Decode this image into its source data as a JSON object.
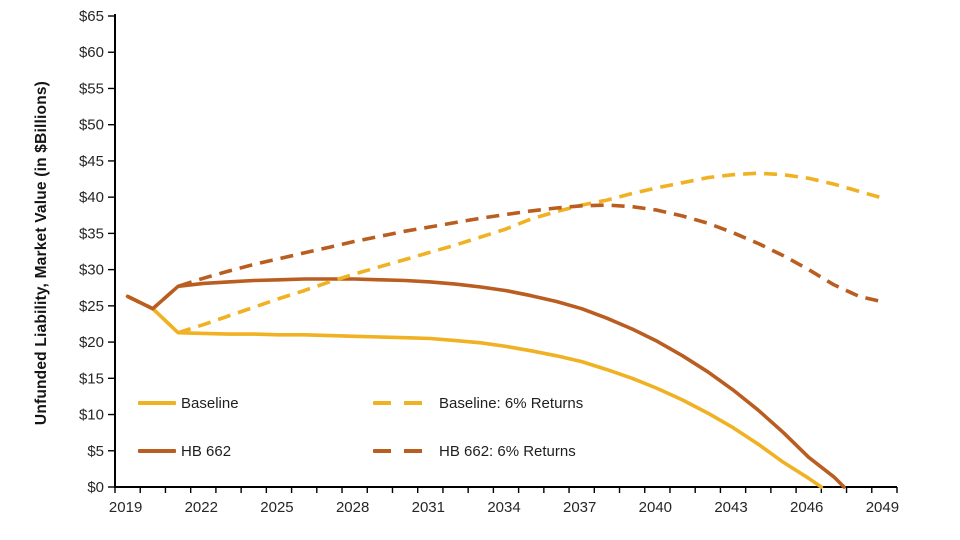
{
  "accent_colors": {
    "gold": "#F0B122",
    "brown": "#BA5D20",
    "axis": "#000000",
    "tick_text": "#262626"
  },
  "chart_data": {
    "type": "line",
    "title": "",
    "xlabel": "",
    "ylabel": "Unfunded Liability, Market Value (in $Billions)",
    "ylim": [
      0,
      65
    ],
    "xlim": [
      2019,
      2049
    ],
    "grid": false,
    "legend_position": "inside-bottom-left",
    "yticks": {
      "values": [
        0,
        5,
        10,
        15,
        20,
        25,
        30,
        35,
        40,
        45,
        50,
        55,
        60,
        65
      ],
      "labels": [
        "$0",
        "$5",
        "$10",
        "$15",
        "$20",
        "$25",
        "$30",
        "$35",
        "$40",
        "$45",
        "$50",
        "$55",
        "$60",
        "$65"
      ]
    },
    "xticks": {
      "values": [
        2019,
        2022,
        2025,
        2028,
        2031,
        2034,
        2037,
        2040,
        2043,
        2046,
        2049
      ],
      "labels": [
        "2019",
        "2022",
        "2025",
        "2028",
        "2031",
        "2034",
        "2037",
        "2040",
        "2043",
        "2046",
        "2049"
      ],
      "minor_tick_every_year": true
    },
    "series": [
      {
        "name": "Baseline",
        "color": "#F0B122",
        "style": "solid",
        "points": [
          [
            2019,
            26.3
          ],
          [
            2020,
            24.6
          ],
          [
            2021,
            21.3
          ],
          [
            2022,
            21.2
          ],
          [
            2023,
            21.1
          ],
          [
            2024,
            21.1
          ],
          [
            2025,
            21.0
          ],
          [
            2026,
            21.0
          ],
          [
            2027,
            20.9
          ],
          [
            2028,
            20.8
          ],
          [
            2029,
            20.7
          ],
          [
            2030,
            20.6
          ],
          [
            2031,
            20.5
          ],
          [
            2032,
            20.2
          ],
          [
            2033,
            19.9
          ],
          [
            2034,
            19.4
          ],
          [
            2035,
            18.8
          ],
          [
            2036,
            18.1
          ],
          [
            2037,
            17.3
          ],
          [
            2038,
            16.2
          ],
          [
            2039,
            15.0
          ],
          [
            2040,
            13.6
          ],
          [
            2041,
            12.0
          ],
          [
            2042,
            10.2
          ],
          [
            2043,
            8.2
          ],
          [
            2044,
            5.9
          ],
          [
            2045,
            3.4
          ],
          [
            2046,
            1.2
          ],
          [
            2046.5,
            0
          ]
        ]
      },
      {
        "name": "HB 662",
        "color": "#BA5D20",
        "style": "solid",
        "points": [
          [
            2019,
            26.3
          ],
          [
            2020,
            24.6
          ],
          [
            2021,
            27.7
          ],
          [
            2022,
            28.1
          ],
          [
            2023,
            28.3
          ],
          [
            2024,
            28.5
          ],
          [
            2025,
            28.6
          ],
          [
            2026,
            28.7
          ],
          [
            2027,
            28.7
          ],
          [
            2028,
            28.7
          ],
          [
            2029,
            28.6
          ],
          [
            2030,
            28.5
          ],
          [
            2031,
            28.3
          ],
          [
            2032,
            28.0
          ],
          [
            2033,
            27.6
          ],
          [
            2034,
            27.1
          ],
          [
            2035,
            26.4
          ],
          [
            2036,
            25.6
          ],
          [
            2037,
            24.6
          ],
          [
            2038,
            23.3
          ],
          [
            2039,
            21.8
          ],
          [
            2040,
            20.1
          ],
          [
            2041,
            18.1
          ],
          [
            2042,
            15.9
          ],
          [
            2043,
            13.4
          ],
          [
            2044,
            10.6
          ],
          [
            2045,
            7.5
          ],
          [
            2046,
            4.1
          ],
          [
            2047,
            1.4
          ],
          [
            2047.4,
            0
          ]
        ]
      },
      {
        "name": "Baseline: 6% Returns",
        "color": "#F0B122",
        "style": "dashed",
        "points": [
          [
            2019,
            26.3
          ],
          [
            2020,
            24.6
          ],
          [
            2021,
            21.3
          ],
          [
            2022,
            22.4
          ],
          [
            2023,
            23.6
          ],
          [
            2024,
            24.8
          ],
          [
            2025,
            26.0
          ],
          [
            2026,
            27.1
          ],
          [
            2027,
            28.3
          ],
          [
            2028,
            29.4
          ],
          [
            2029,
            30.4
          ],
          [
            2030,
            31.4
          ],
          [
            2031,
            32.4
          ],
          [
            2032,
            33.4
          ],
          [
            2033,
            34.5
          ],
          [
            2034,
            35.6
          ],
          [
            2035,
            37.0
          ],
          [
            2036,
            38.0
          ],
          [
            2037,
            38.9
          ],
          [
            2038,
            39.6
          ],
          [
            2039,
            40.5
          ],
          [
            2040,
            41.3
          ],
          [
            2041,
            42.0
          ],
          [
            2042,
            42.7
          ],
          [
            2043,
            43.1
          ],
          [
            2044,
            43.3
          ],
          [
            2045,
            43.1
          ],
          [
            2046,
            42.6
          ],
          [
            2047,
            41.8
          ],
          [
            2048,
            40.8
          ],
          [
            2049,
            39.8
          ]
        ]
      },
      {
        "name": "HB 662: 6% Returns",
        "color": "#BA5D20",
        "style": "dashed",
        "points": [
          [
            2019,
            26.3
          ],
          [
            2020,
            24.6
          ],
          [
            2021,
            27.7
          ],
          [
            2022,
            28.8
          ],
          [
            2023,
            29.8
          ],
          [
            2024,
            30.7
          ],
          [
            2025,
            31.5
          ],
          [
            2026,
            32.3
          ],
          [
            2027,
            33.1
          ],
          [
            2028,
            33.9
          ],
          [
            2029,
            34.6
          ],
          [
            2030,
            35.3
          ],
          [
            2031,
            35.9
          ],
          [
            2032,
            36.5
          ],
          [
            2033,
            37.1
          ],
          [
            2034,
            37.6
          ],
          [
            2035,
            38.1
          ],
          [
            2036,
            38.5
          ],
          [
            2037,
            38.8
          ],
          [
            2038,
            38.9
          ],
          [
            2039,
            38.7
          ],
          [
            2040,
            38.2
          ],
          [
            2041,
            37.4
          ],
          [
            2042,
            36.4
          ],
          [
            2043,
            35.1
          ],
          [
            2044,
            33.6
          ],
          [
            2045,
            31.9
          ],
          [
            2046,
            30.0
          ],
          [
            2047,
            27.9
          ],
          [
            2048,
            26.3
          ],
          [
            2049,
            25.5
          ]
        ]
      }
    ]
  },
  "legend": {
    "rows": [
      [
        "Baseline",
        "Baseline: 6% Returns"
      ],
      [
        "HB 662",
        "HB 662: 6% Returns"
      ]
    ]
  }
}
